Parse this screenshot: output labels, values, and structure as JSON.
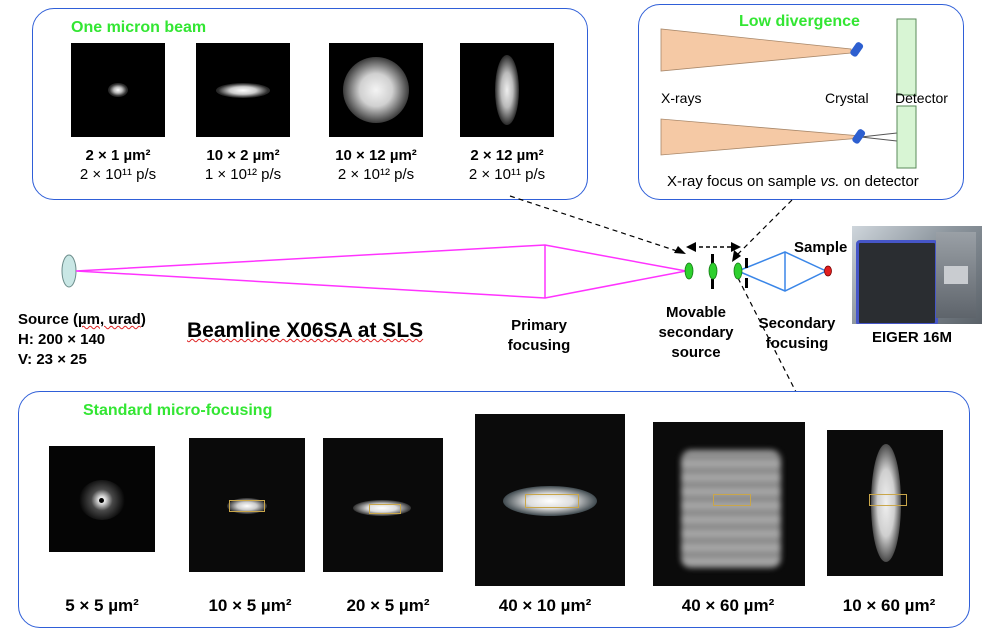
{
  "top_panel": {
    "title": "One micron beam",
    "spots": [
      {
        "size_label": "2 × 1 µm²",
        "flux_label": "2 × 10¹¹ p/s"
      },
      {
        "size_label": "10 × 2 µm²",
        "flux_label": "1 × 10¹² p/s"
      },
      {
        "size_label": "10 × 12 µm²",
        "flux_label": "2 × 10¹² p/s"
      },
      {
        "size_label": "2 × 12 µm²",
        "flux_label": "2 × 10¹¹ p/s"
      }
    ]
  },
  "divergence_panel": {
    "title": "Low divergence",
    "xrays_label": "X-rays",
    "crystal_label": "Crystal",
    "detector_label": "Detector",
    "caption_prefix": "X-ray focus on sample ",
    "caption_vs": "vs.",
    "caption_suffix": " on detector"
  },
  "beamline": {
    "title": "Beamline X06SA at SLS",
    "source_line1": "Source (",
    "source_unit": "µm, urad",
    "source_line1_end": ")",
    "source_h": "H: 200 × 140",
    "source_v": "V: 23 × 25",
    "primary_focusing": "Primary focusing",
    "movable_source": "Movable secondary source",
    "secondary_focusing": "Secondary focusing",
    "sample": "Sample",
    "detector_photo_label": "EIGER 16M"
  },
  "bottom_panel": {
    "title": "Standard micro-focusing",
    "spots": [
      {
        "size_label": "5 × 5 µm²"
      },
      {
        "size_label": "10 × 5 µm²"
      },
      {
        "size_label": "20 × 5 µm²"
      },
      {
        "size_label": "40 × 10 µm²"
      },
      {
        "size_label": "40 × 60 µm²"
      },
      {
        "size_label": "10 × 60 µm²"
      }
    ]
  },
  "colors": {
    "panel_border": "#2f5fd8",
    "panel_title": "#33e633",
    "beam_magenta": "#ff33ff",
    "beam_blue": "#3a86e8",
    "xray_fan": "#f5c9a5"
  }
}
